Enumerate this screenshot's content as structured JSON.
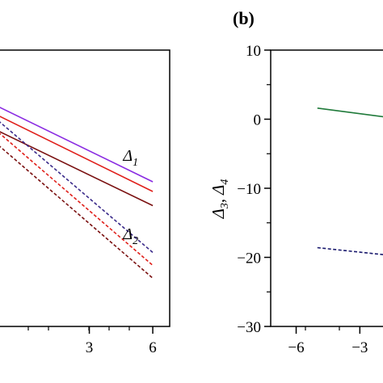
{
  "chart_data": [
    {
      "panel_label": "",
      "type": "line",
      "x_ticks": [
        3,
        6
      ],
      "xlim": [
        -1.3,
        6.8
      ],
      "ylim": [
        -35,
        8
      ],
      "series": [
        {
          "style": "solid",
          "color": "#8a2be2",
          "x": [
            -1.3,
            6
          ],
          "y": [
            -0.8,
            -12.5
          ]
        },
        {
          "style": "solid",
          "color": "#e0201b",
          "x": [
            -1.3,
            6
          ],
          "y": [
            -2.2,
            -14.0
          ]
        },
        {
          "style": "solid",
          "color": "#7a1010",
          "x": [
            -1.3,
            6
          ],
          "y": [
            -4.6,
            -16.2
          ]
        },
        {
          "style": "dashed",
          "color": "#3a2a8a",
          "x": [
            -1.3,
            6
          ],
          "y": [
            -3.0,
            -23.5
          ]
        },
        {
          "style": "dashed",
          "color": "#e0201b",
          "x": [
            -1.3,
            6
          ],
          "y": [
            -4.8,
            -25.5
          ]
        },
        {
          "style": "dashed",
          "color": "#7a1010",
          "x": [
            -1.3,
            6
          ],
          "y": [
            -6.8,
            -27.5
          ]
        }
      ],
      "annotations": [
        {
          "main": "Δ",
          "sub": "1",
          "x": 4.6,
          "y": -9.2
        },
        {
          "main": "Δ",
          "sub": "2",
          "x": 4.6,
          "y": -21.4
        }
      ]
    },
    {
      "panel_label": "(b)",
      "type": "line",
      "ylabel_parts": [
        "Δ",
        "3",
        ", Δ",
        "4"
      ],
      "x_ticks": [
        -6,
        -3
      ],
      "y_ticks": [
        10,
        0,
        -10,
        -20,
        -30
      ],
      "xlim": [
        -7.2,
        -1.3
      ],
      "ylim": [
        -30,
        10
      ],
      "series": [
        {
          "style": "solid",
          "color": "#1f7a3a",
          "x": [
            -5,
            -1.3
          ],
          "y": [
            1.6,
            0.1
          ]
        },
        {
          "style": "dashed",
          "color": "#1a1a6e",
          "x": [
            -5,
            -1.3
          ],
          "y": [
            -18.6,
            -19.8
          ]
        }
      ]
    }
  ]
}
